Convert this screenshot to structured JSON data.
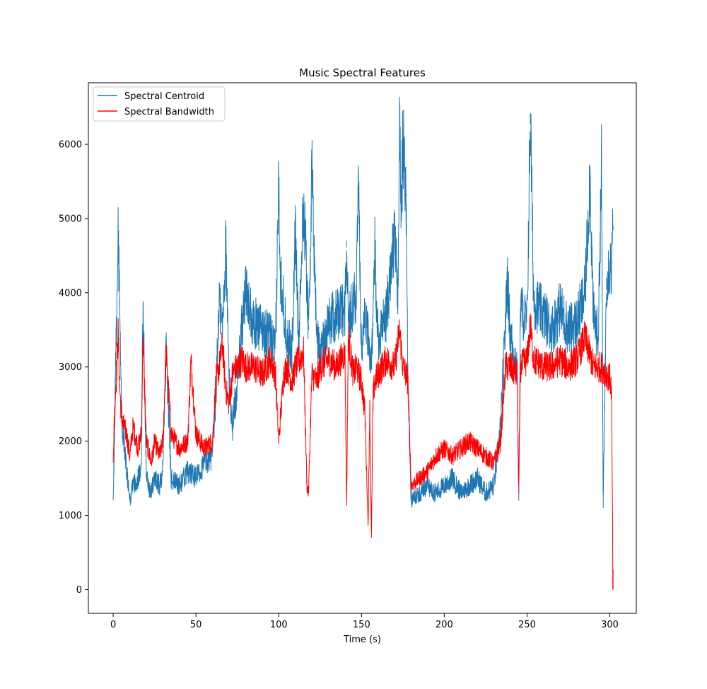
{
  "chart_data": {
    "type": "line",
    "title": "Music Spectral Features",
    "xlabel": "Time (s)",
    "ylabel": "",
    "xlim": [
      -15,
      316
    ],
    "ylim": [
      -320,
      6830
    ],
    "xticks": [
      0,
      50,
      100,
      150,
      200,
      250,
      300
    ],
    "yticks": [
      0,
      1000,
      2000,
      3000,
      4000,
      5000,
      6000
    ],
    "grid": false,
    "legend_position": "top-left",
    "series": [
      {
        "name": "Spectral Centroid",
        "color": "#1f77b4",
        "x": [
          0,
          1,
          2,
          3,
          4,
          5,
          8,
          10,
          12,
          15,
          17,
          18,
          20,
          23,
          25,
          28,
          30,
          32,
          35,
          40,
          45,
          50,
          55,
          60,
          62,
          64,
          66,
          68,
          70,
          72,
          75,
          78,
          80,
          85,
          90,
          95,
          98,
          100,
          101,
          103,
          105,
          108,
          110,
          112,
          115,
          117,
          118,
          120,
          123,
          125,
          130,
          135,
          140,
          141,
          142,
          145,
          147,
          148,
          150,
          152,
          154,
          156,
          157,
          158,
          160,
          165,
          170,
          172,
          173,
          174,
          175,
          176,
          177,
          178,
          180,
          185,
          190,
          195,
          200,
          205,
          210,
          215,
          220,
          225,
          230,
          234,
          237,
          238,
          240,
          244,
          245,
          246,
          250,
          252,
          254,
          260,
          265,
          270,
          275,
          280,
          285,
          288,
          290,
          293,
          295,
          296,
          298,
          300,
          301,
          302
        ],
        "y": [
          1100,
          2400,
          3600,
          4700,
          3800,
          2400,
          1600,
          1200,
          1400,
          1500,
          1700,
          3880,
          1500,
          1300,
          1500,
          1400,
          1600,
          3280,
          1500,
          1400,
          1600,
          1500,
          1700,
          1800,
          2600,
          3900,
          3500,
          4650,
          2800,
          2200,
          2800,
          3600,
          4000,
          3600,
          3500,
          3400,
          3200,
          5520,
          4300,
          3800,
          3400,
          3200,
          4800,
          3400,
          5200,
          4200,
          3500,
          5600,
          3400,
          3200,
          3600,
          3700,
          3800,
          4700,
          3600,
          3900,
          4000,
          5650,
          3200,
          3800,
          3400,
          3000,
          3600,
          4600,
          3400,
          3700,
          4800,
          3900,
          6500,
          5000,
          6050,
          5700,
          5300,
          2800,
          1200,
          1300,
          1400,
          1300,
          1400,
          1500,
          1300,
          1400,
          1500,
          1300,
          1400,
          2200,
          3600,
          4250,
          3400,
          3000,
          1200,
          3800,
          3600,
          6420,
          3900,
          3700,
          3500,
          3800,
          3500,
          3600,
          4000,
          5580,
          3700,
          3400,
          5800,
          1100,
          4200,
          4400,
          4300,
          4900
        ]
      },
      {
        "name": "Spectral Bandwidth",
        "color": "#ff0000",
        "x": [
          0,
          1,
          2,
          3,
          4,
          5,
          8,
          10,
          12,
          15,
          17,
          18,
          20,
          23,
          25,
          28,
          30,
          32,
          35,
          40,
          45,
          47,
          50,
          55,
          60,
          62,
          64,
          66,
          68,
          70,
          72,
          75,
          78,
          80,
          85,
          90,
          95,
          98,
          100,
          103,
          105,
          108,
          110,
          115,
          117,
          118,
          120,
          123,
          125,
          130,
          135,
          140,
          141,
          142,
          145,
          147,
          150,
          152,
          154,
          155,
          156,
          157,
          158,
          160,
          165,
          170,
          173,
          175,
          177,
          178,
          180,
          185,
          190,
          195,
          200,
          205,
          210,
          215,
          220,
          225,
          230,
          234,
          237,
          240,
          244,
          245,
          246,
          250,
          252,
          254,
          260,
          265,
          270,
          275,
          280,
          285,
          290,
          293,
          295,
          298,
          300,
          301,
          302
        ],
        "y": [
          1750,
          2500,
          2900,
          3450,
          2700,
          2300,
          2100,
          1800,
          2200,
          1900,
          2100,
          3400,
          2000,
          1700,
          2000,
          1800,
          2000,
          3200,
          2100,
          1900,
          2000,
          3100,
          2100,
          1900,
          2000,
          2800,
          3000,
          3300,
          2700,
          2500,
          2900,
          3000,
          3100,
          3000,
          3000,
          2900,
          3100,
          2900,
          2000,
          2900,
          3000,
          2800,
          3000,
          3200,
          1400,
          1300,
          2900,
          2800,
          3000,
          3100,
          3000,
          3200,
          1130,
          3400,
          2900,
          3000,
          2800,
          2400,
          900,
          2500,
          700,
          2600,
          2800,
          2900,
          3100,
          3000,
          3500,
          3000,
          2900,
          2800,
          1400,
          1500,
          1600,
          1800,
          1900,
          1800,
          1900,
          2000,
          1900,
          1800,
          1700,
          2000,
          3000,
          3000,
          2900,
          1300,
          3000,
          3100,
          3550,
          3100,
          3000,
          3000,
          3100,
          3000,
          3100,
          3400,
          3000,
          3000,
          3000,
          2900,
          2850,
          2700,
          0
        ]
      }
    ]
  }
}
